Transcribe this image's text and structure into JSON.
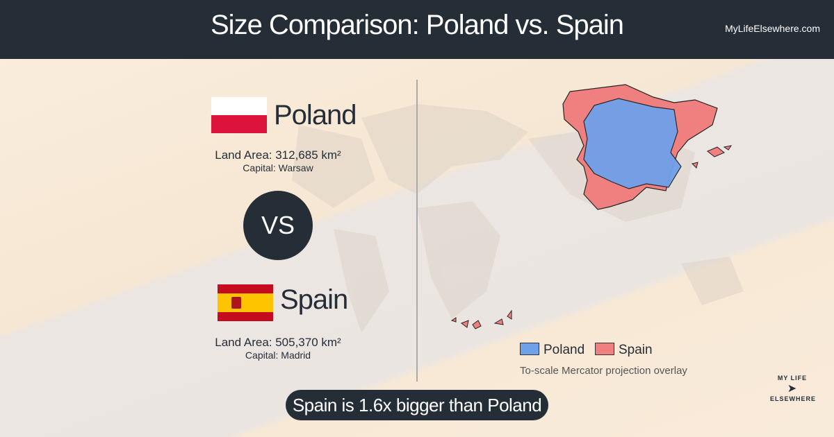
{
  "header": {
    "title": "Size Comparison: Poland vs. Spain",
    "site": "MyLifeElsewhere.com"
  },
  "countries": [
    {
      "name": "Poland",
      "land_area": "Land Area: 312,685 km²",
      "capital": "Capital: Warsaw"
    },
    {
      "name": "Spain",
      "land_area": "Land Area: 505,370 km²",
      "capital": "Capital: Madrid"
    }
  ],
  "vs": "VS",
  "legend": [
    {
      "label": "Poland",
      "color": "#6fa0ea"
    },
    {
      "label": "Spain",
      "color": "#f08080"
    }
  ],
  "note": "To-scale Mercator projection overlay",
  "summary": "Spain is 1.6x bigger than Poland",
  "logo": {
    "line1": "MY LIFE",
    "line2": "ELSEWHERE"
  }
}
